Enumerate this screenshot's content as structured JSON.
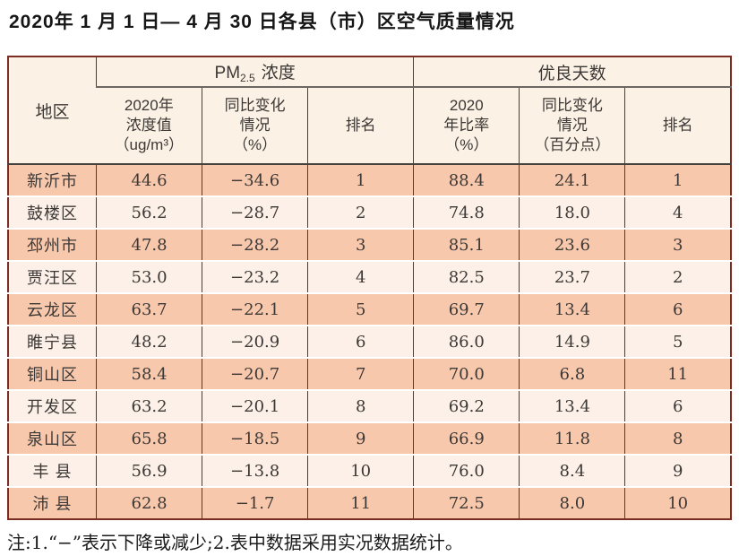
{
  "title": "2020年 1 月 1 日— 4 月 30 日各县（市）区空气质量情况",
  "footnote": "注:1.“−”表示下降或减少;2.表中数据采用实况数据统计。",
  "colors": {
    "outer_border": "#7b2d24",
    "inner_border": "#44403b",
    "header_bg": "#fbf1e5",
    "row_odd": "#f8c8ad",
    "row_even": "#fcf0e8",
    "text": "#3c3835"
  },
  "chart_data": {
    "type": "table",
    "title": "2020年1月1日—4月30日各县（市）区空气质量情况",
    "groups": {
      "pm25": {
        "prefix": "PM",
        "sub": "2.5",
        "suffix": "浓度"
      },
      "good_days": "优良天数"
    },
    "columns": {
      "region": "地区",
      "pm_value": "2020年\n浓度值\n（ug/m³）",
      "pm_change": "同比变化\n情况\n（%）",
      "pm_rank": "排名",
      "good_ratio": "2020\n年比率\n（%）",
      "good_change": "同比变化\n情况\n（百分点）",
      "good_rank": "排名"
    },
    "rows": [
      {
        "region": "新沂市",
        "pm_value": "44.6",
        "pm_change": "−34.6",
        "pm_rank": "1",
        "good_ratio": "88.4",
        "good_change": "24.1",
        "good_rank": "1"
      },
      {
        "region": "鼓楼区",
        "pm_value": "56.2",
        "pm_change": "−28.7",
        "pm_rank": "2",
        "good_ratio": "74.8",
        "good_change": "18.0",
        "good_rank": "4"
      },
      {
        "region": "邳州市",
        "pm_value": "47.8",
        "pm_change": "−28.2",
        "pm_rank": "3",
        "good_ratio": "85.1",
        "good_change": "23.6",
        "good_rank": "3"
      },
      {
        "region": "贾汪区",
        "pm_value": "53.0",
        "pm_change": "−23.2",
        "pm_rank": "4",
        "good_ratio": "82.5",
        "good_change": "23.7",
        "good_rank": "2"
      },
      {
        "region": "云龙区",
        "pm_value": "63.7",
        "pm_change": "−22.1",
        "pm_rank": "5",
        "good_ratio": "69.7",
        "good_change": "13.4",
        "good_rank": "6"
      },
      {
        "region": "睢宁县",
        "pm_value": "48.2",
        "pm_change": "−20.9",
        "pm_rank": "6",
        "good_ratio": "86.0",
        "good_change": "14.9",
        "good_rank": "5"
      },
      {
        "region": "铜山区",
        "pm_value": "58.4",
        "pm_change": "−20.7",
        "pm_rank": "7",
        "good_ratio": "70.0",
        "good_change": "6.8",
        "good_rank": "11"
      },
      {
        "region": "开发区",
        "pm_value": "63.2",
        "pm_change": "−20.1",
        "pm_rank": "8",
        "good_ratio": "69.2",
        "good_change": "13.4",
        "good_rank": "6"
      },
      {
        "region": "泉山区",
        "pm_value": "65.8",
        "pm_change": "−18.5",
        "pm_rank": "9",
        "good_ratio": "66.9",
        "good_change": "11.8",
        "good_rank": "8"
      },
      {
        "region": "丰 县",
        "pm_value": "56.9",
        "pm_change": "−13.8",
        "pm_rank": "10",
        "good_ratio": "76.0",
        "good_change": "8.4",
        "good_rank": "9"
      },
      {
        "region": "沛 县",
        "pm_value": "62.8",
        "pm_change": "−1.7",
        "pm_rank": "11",
        "good_ratio": "72.5",
        "good_change": "8.0",
        "good_rank": "10"
      }
    ]
  }
}
